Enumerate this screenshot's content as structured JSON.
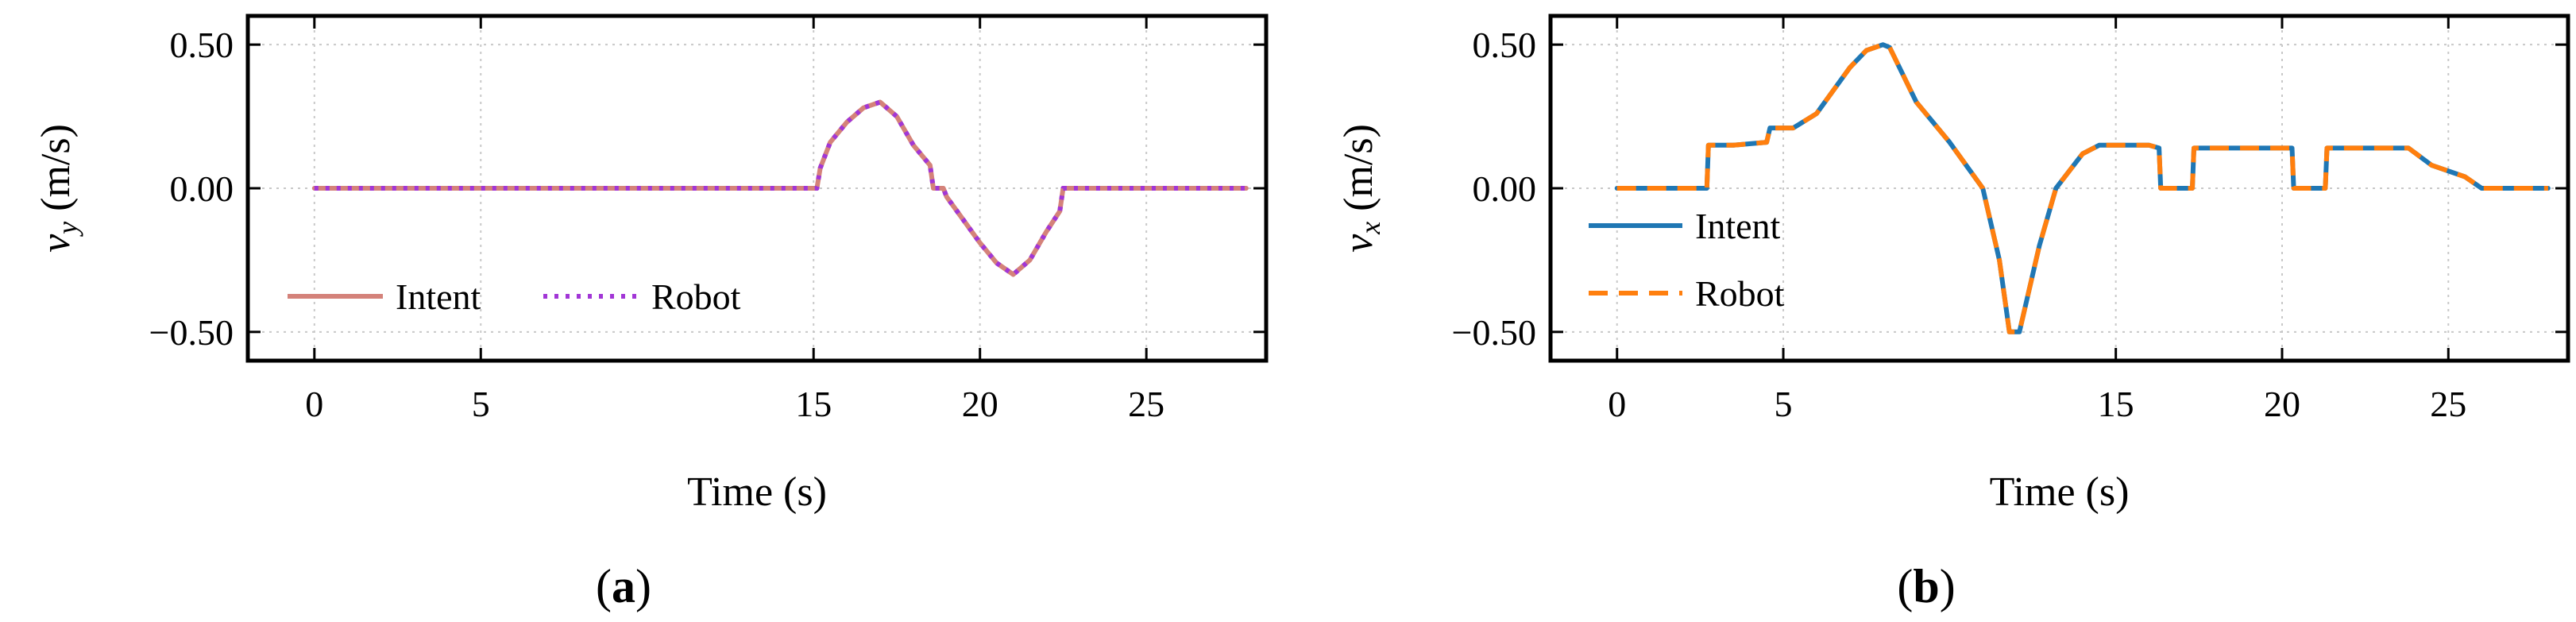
{
  "colors": {
    "intent_a": "#d4827a",
    "robot_a": "#a236d6",
    "intent_b": "#1f77b4",
    "robot_b": "#ff7f0e",
    "grid": "#c8c8c8"
  },
  "chart_data": [
    {
      "id": "a",
      "type": "line",
      "panel_label": "(a)",
      "panel_label_parts": [
        "(",
        "a",
        ")"
      ],
      "xlabel": "Time (s)",
      "ylabel": "v_y (m/s)",
      "ylabel_parts": {
        "v": "v",
        "sub": "y",
        "unit": " (m/s)"
      },
      "xlim": [
        -2,
        28.6
      ],
      "ylim": [
        -0.6,
        0.6
      ],
      "xticks": [
        0,
        5,
        15,
        20,
        25
      ],
      "xtick_labels": [
        "0",
        "5",
        "15",
        "20",
        "25"
      ],
      "yticks": [
        0.5,
        0.0,
        -0.5
      ],
      "ytick_labels": [
        "0.50",
        "0.00",
        "−0.50"
      ],
      "grid": true,
      "legend": {
        "placement": "bottom-left",
        "orientation": "horizontal"
      },
      "series": [
        {
          "name": "Intent",
          "style": "solid",
          "x": [
            0,
            15.1,
            15.2,
            15.5,
            16.0,
            16.5,
            17.0,
            17.5,
            18.0,
            18.5,
            18.6,
            18.9,
            19.0,
            19.5,
            20.0,
            20.5,
            21.0,
            21.5,
            22.0,
            22.4,
            22.5,
            28
          ],
          "y": [
            0,
            0,
            0.07,
            0.16,
            0.23,
            0.28,
            0.3,
            0.25,
            0.15,
            0.08,
            0.0,
            0.0,
            -0.03,
            -0.11,
            -0.19,
            -0.26,
            -0.3,
            -0.25,
            -0.15,
            -0.08,
            0.0,
            0.0
          ]
        },
        {
          "name": "Robot",
          "style": "dotted",
          "x": [
            0,
            15.1,
            15.2,
            15.5,
            16.0,
            16.5,
            17.0,
            17.5,
            18.0,
            18.5,
            18.6,
            18.9,
            19.0,
            19.5,
            20.0,
            20.5,
            21.0,
            21.5,
            22.0,
            22.4,
            22.5,
            28
          ],
          "y": [
            0,
            0,
            0.07,
            0.16,
            0.23,
            0.28,
            0.3,
            0.25,
            0.15,
            0.08,
            0.0,
            0.0,
            -0.03,
            -0.11,
            -0.19,
            -0.26,
            -0.3,
            -0.25,
            -0.15,
            -0.08,
            0.0,
            0.0
          ]
        }
      ]
    },
    {
      "id": "b",
      "type": "line",
      "panel_label": "(b)",
      "panel_label_parts": [
        "(",
        "b",
        ")"
      ],
      "xlabel": "Time (s)",
      "ylabel": "v_x (m/s)",
      "ylabel_parts": {
        "v": "v",
        "sub": "x",
        "unit": " (m/s)"
      },
      "xlim": [
        -2,
        28.6
      ],
      "ylim": [
        -0.6,
        0.6
      ],
      "xticks": [
        0,
        5,
        15,
        20,
        25
      ],
      "xtick_labels": [
        "0",
        "5",
        "15",
        "20",
        "25"
      ],
      "yticks": [
        0.5,
        0.0,
        -0.5
      ],
      "ytick_labels": [
        "0.50",
        "0.00",
        "−0.50"
      ],
      "grid": true,
      "legend": {
        "placement": "left",
        "orientation": "vertical"
      },
      "series": [
        {
          "name": "Intent",
          "style": "solid",
          "x": [
            0,
            2.7,
            2.75,
            3.5,
            4.5,
            4.6,
            5.3,
            6.0,
            7.0,
            7.5,
            8.0,
            8.2,
            9.0,
            10.0,
            10.5,
            11.0,
            11.5,
            11.8,
            12.1,
            12.7,
            13.2,
            14.0,
            14.5,
            15.0,
            16.0,
            16.3,
            16.35,
            17.3,
            17.35,
            20.3,
            20.35,
            21.3,
            21.35,
            23.8,
            24.5,
            25.5,
            26.0,
            28
          ],
          "y": [
            0,
            0,
            0.15,
            0.15,
            0.16,
            0.21,
            0.21,
            0.26,
            0.42,
            0.48,
            0.5,
            0.49,
            0.3,
            0.16,
            0.08,
            0.0,
            -0.25,
            -0.5,
            -0.5,
            -0.2,
            0.0,
            0.12,
            0.15,
            0.15,
            0.15,
            0.14,
            0.0,
            0.0,
            0.14,
            0.14,
            0.0,
            0.0,
            0.14,
            0.14,
            0.08,
            0.04,
            0.0,
            0.0
          ]
        },
        {
          "name": "Robot",
          "style": "dashed",
          "x": [
            0,
            2.7,
            2.75,
            3.5,
            4.5,
            4.6,
            5.3,
            6.0,
            7.0,
            7.5,
            8.0,
            8.2,
            9.0,
            10.0,
            10.5,
            11.0,
            11.5,
            11.8,
            12.1,
            12.7,
            13.2,
            14.0,
            14.5,
            15.0,
            16.0,
            16.3,
            16.35,
            17.3,
            17.35,
            20.3,
            20.35,
            21.3,
            21.35,
            23.8,
            24.5,
            25.5,
            26.0,
            28
          ],
          "y": [
            0,
            0,
            0.15,
            0.15,
            0.16,
            0.21,
            0.21,
            0.26,
            0.42,
            0.48,
            0.5,
            0.49,
            0.3,
            0.16,
            0.08,
            0.0,
            -0.25,
            -0.5,
            -0.5,
            -0.2,
            0.0,
            0.12,
            0.15,
            0.15,
            0.15,
            0.14,
            0.0,
            0.0,
            0.14,
            0.14,
            0.0,
            0.0,
            0.14,
            0.14,
            0.08,
            0.04,
            0.0,
            0.0
          ]
        }
      ]
    }
  ]
}
